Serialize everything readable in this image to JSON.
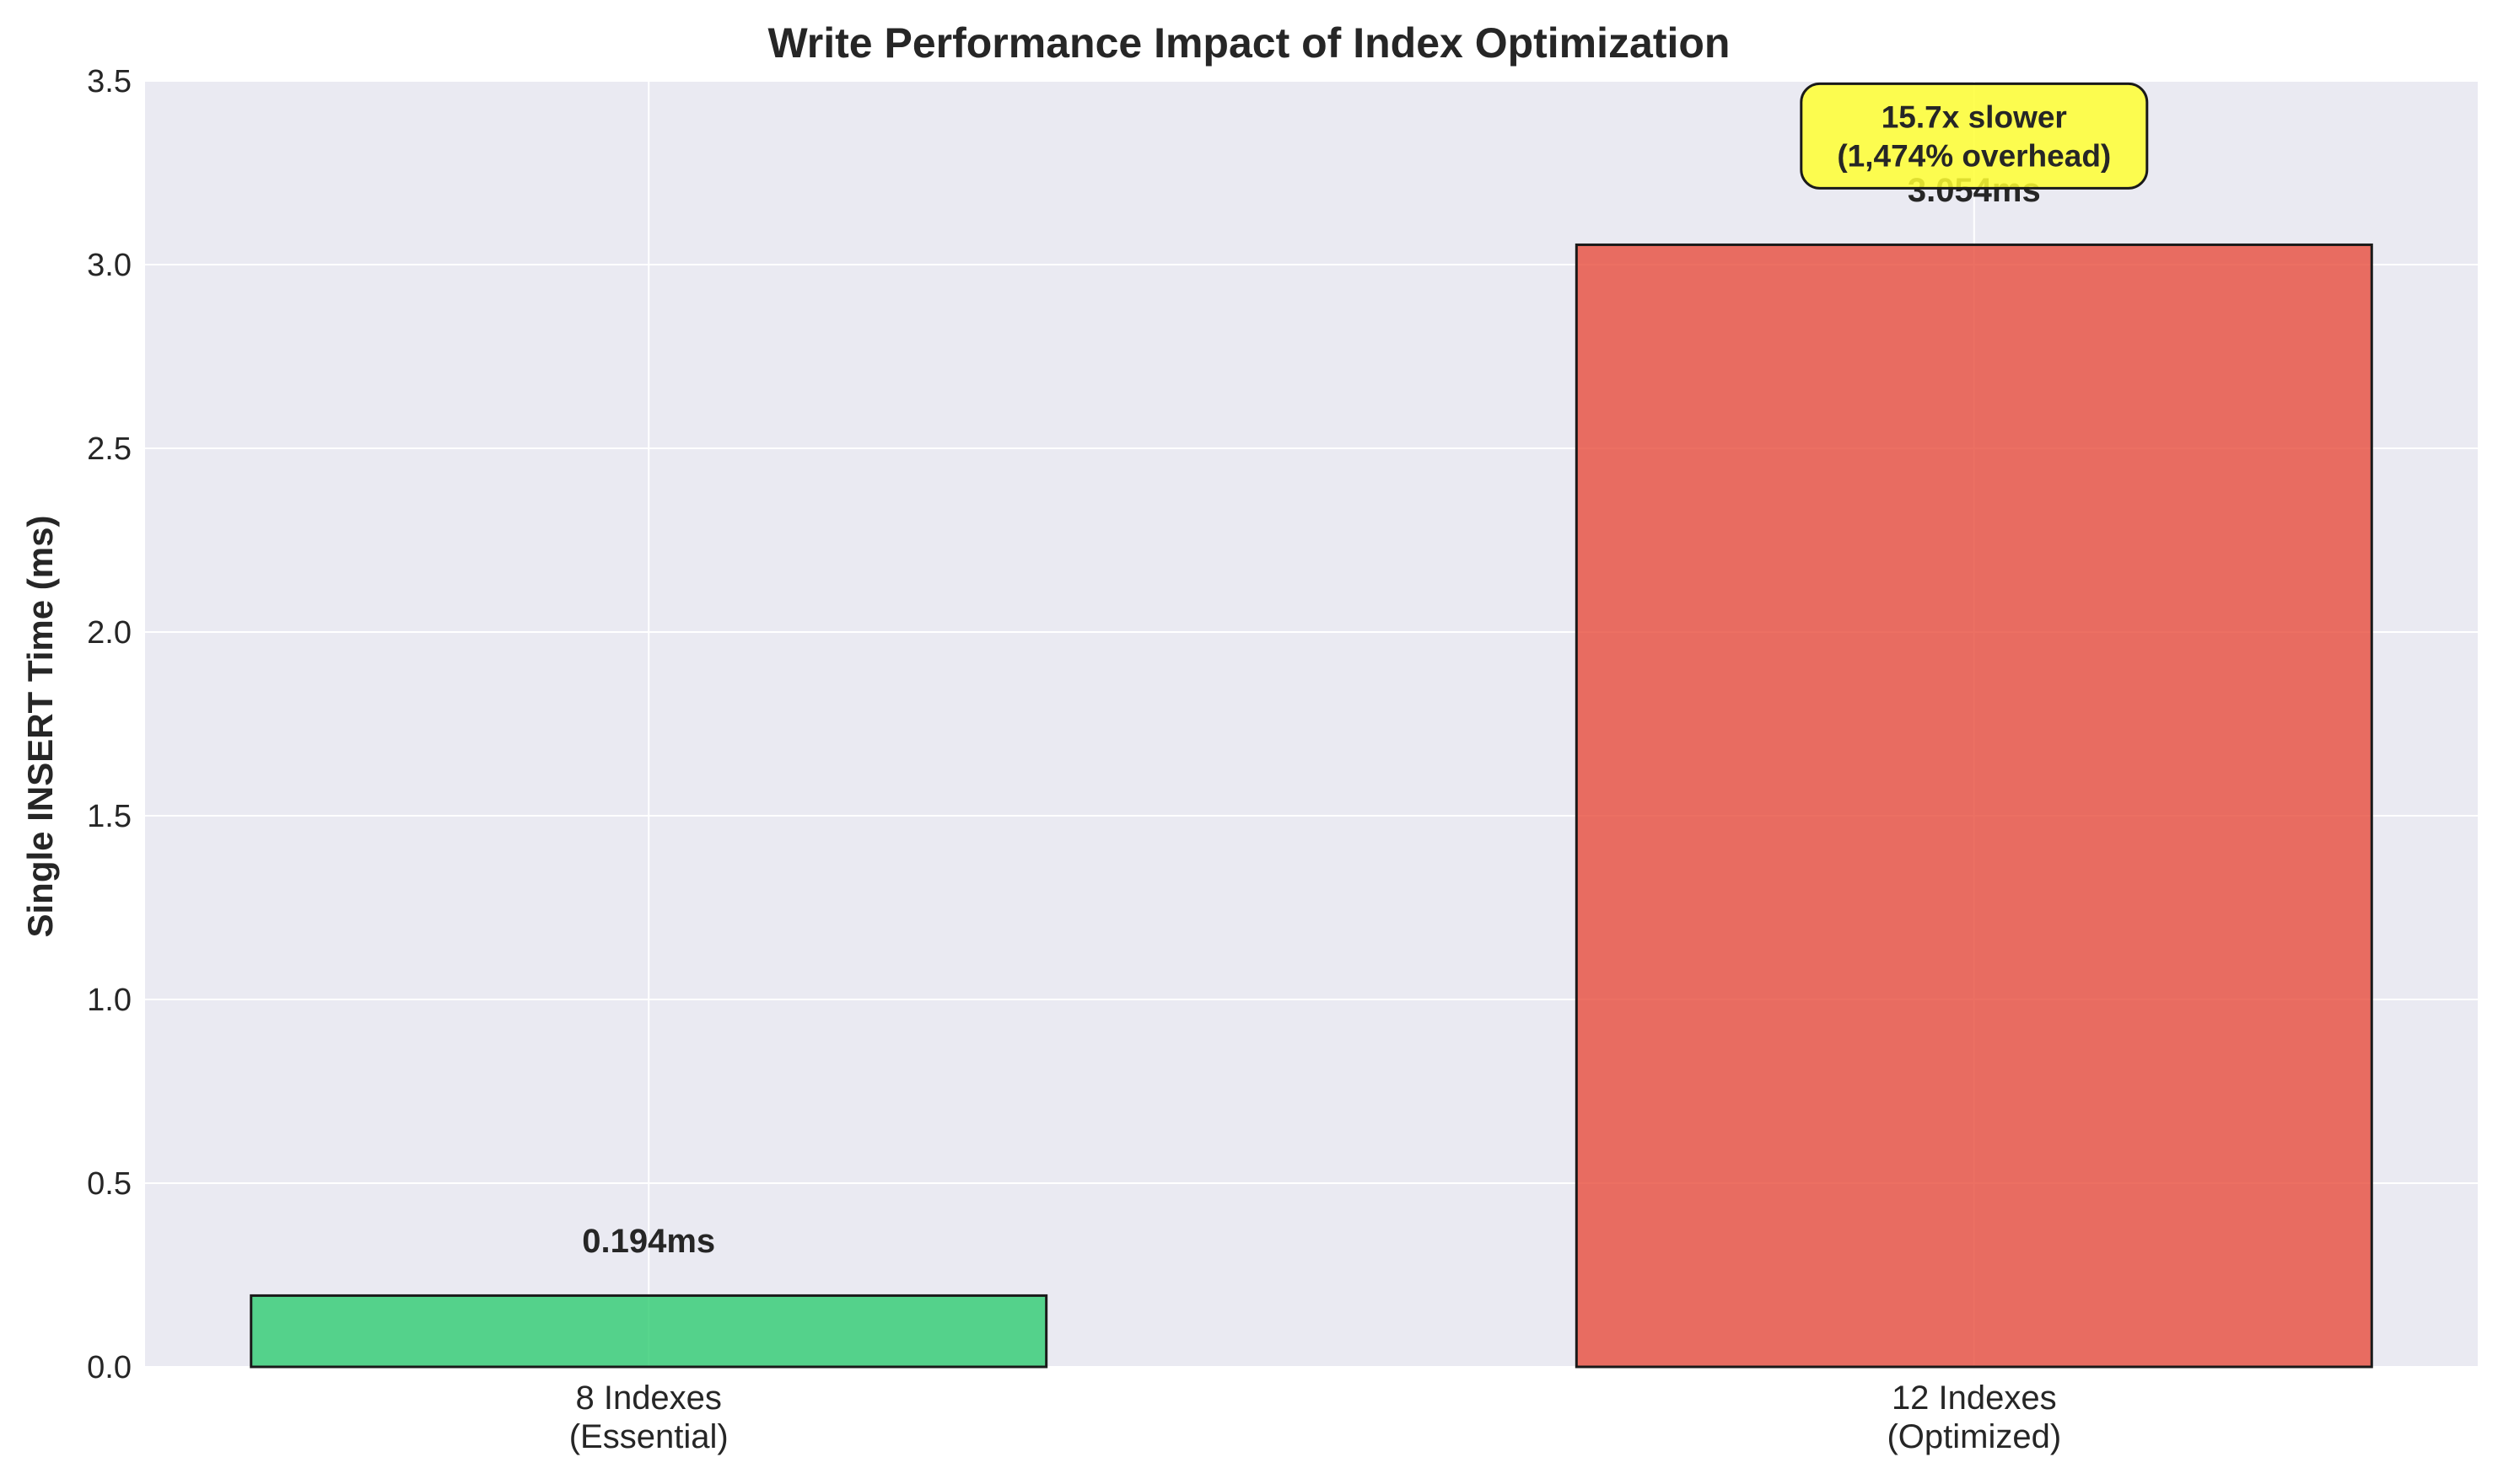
{
  "chart_data": {
    "type": "bar",
    "title": "Write Performance Impact of Index Optimization",
    "xlabel": "",
    "ylabel": "Single INSERT Time (ms)",
    "categories": [
      [
        "8 Indexes",
        "(Essential)"
      ],
      [
        "12 Indexes",
        "(Optimized)"
      ]
    ],
    "values": [
      0.194,
      3.054
    ],
    "value_labels": [
      "0.194ms",
      "3.054ms"
    ],
    "bar_colors": [
      "#2ecc71",
      "#e74c3c"
    ],
    "ylim": [
      0,
      3.5
    ],
    "yticks": [
      "0.0",
      "0.5",
      "1.0",
      "1.5",
      "2.0",
      "2.5",
      "3.0",
      "3.5"
    ],
    "ytick_values": [
      0,
      0.5,
      1.0,
      1.5,
      2.0,
      2.5,
      3.0,
      3.5
    ],
    "grid": true,
    "annotation": {
      "lines": [
        "15.7x slower",
        "(1,474% overhead)"
      ],
      "background": "#ffff33",
      "anchor_value": 3.35
    },
    "background": "#eaeaf2"
  }
}
